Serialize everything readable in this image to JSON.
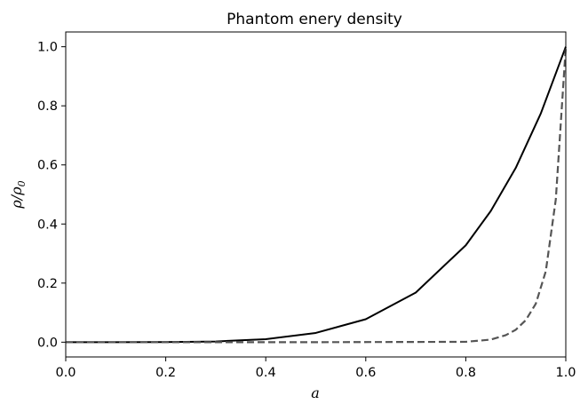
{
  "chart_data": {
    "type": "line",
    "title": "Phantom enery density",
    "xlabel": "a",
    "ylabel": "ρ/ρ",
    "ylabel_subscript": "0",
    "xlim": [
      0.0,
      1.0
    ],
    "ylim": [
      -0.05,
      1.05
    ],
    "xticks": [
      0.0,
      0.2,
      0.4,
      0.6,
      0.8,
      1.0
    ],
    "xtick_labels": [
      "0.0",
      "0.2",
      "0.4",
      "0.6",
      "0.8",
      "1.0"
    ],
    "yticks": [
      0.0,
      0.2,
      0.4,
      0.6,
      0.8,
      1.0
    ],
    "ytick_labels": [
      "0.0",
      "0.2",
      "0.4",
      "0.6",
      "0.8",
      "1.0"
    ],
    "grid": false,
    "series": [
      {
        "style": "solid",
        "color": "#000000",
        "x": [
          0.0,
          0.1,
          0.2,
          0.3,
          0.4,
          0.5,
          0.6,
          0.7,
          0.8,
          0.85,
          0.9,
          0.95,
          1.0
        ],
        "y": [
          0.0,
          0.0,
          0.0003,
          0.0024,
          0.0102,
          0.0313,
          0.0778,
          0.168,
          0.328,
          0.444,
          0.59,
          0.774,
          1.0
        ]
      },
      {
        "style": "dashed",
        "color": "#555555",
        "x": [
          0.0,
          0.5,
          0.8,
          0.85,
          0.88,
          0.9,
          0.92,
          0.94,
          0.96,
          0.98,
          1.0
        ],
        "y": [
          0.0,
          0.0,
          0.0012,
          0.0087,
          0.0238,
          0.042,
          0.0746,
          0.13,
          0.24,
          0.483,
          1.0
        ]
      }
    ]
  }
}
